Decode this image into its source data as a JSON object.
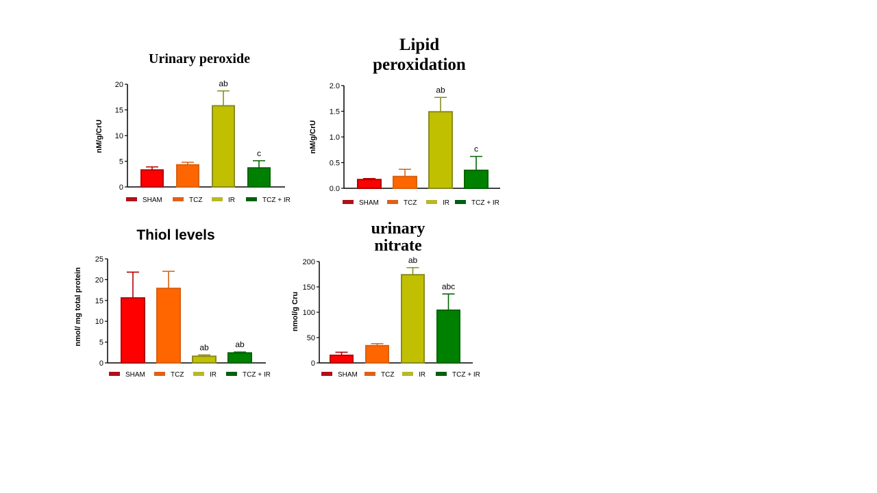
{
  "chart_data": [
    {
      "type": "bar",
      "title": "Urinary peroxide",
      "ylabel": "nM/g/CrU",
      "ylim": [
        0,
        20
      ],
      "yticks": [
        "0",
        "5",
        "10",
        "15",
        "20"
      ],
      "categories": [
        "SHAM",
        "TCZ",
        "IR",
        "TCZ + IR"
      ],
      "values": [
        3.3,
        4.3,
        15.8,
        3.7
      ],
      "errors": [
        0.6,
        0.5,
        2.9,
        1.4
      ],
      "annotations": [
        "",
        "",
        "ab",
        "c"
      ]
    },
    {
      "type": "bar",
      "title": "Lipid peroxidation",
      "ylabel": "nM/g/CrU",
      "ylim": [
        0,
        2.0
      ],
      "yticks": [
        "0.0",
        "0.5",
        "1.0",
        "1.5",
        "2.0"
      ],
      "categories": [
        "SHAM",
        "TCZ",
        "IR",
        "TCZ + IR"
      ],
      "values": [
        0.17,
        0.23,
        1.49,
        0.35
      ],
      "errors": [
        0.02,
        0.14,
        0.28,
        0.27
      ],
      "annotations": [
        "",
        "",
        "ab",
        "c"
      ]
    },
    {
      "type": "bar",
      "title": "Thiol levels",
      "ylabel": "nmol/ mg total protein",
      "ylim": [
        0,
        25
      ],
      "yticks": [
        "0",
        "5",
        "10",
        "15",
        "20",
        "25"
      ],
      "categories": [
        "SHAM",
        "TCZ",
        "IR",
        "TCZ + IR"
      ],
      "values": [
        15.6,
        17.9,
        1.6,
        2.4
      ],
      "errors": [
        6.2,
        4.1,
        0.3,
        0.2
      ],
      "annotations": [
        "",
        "",
        "ab",
        "ab"
      ]
    },
    {
      "type": "bar",
      "title": "urinary nitrate",
      "ylabel": "nmol/g Cru",
      "ylim": [
        0,
        200
      ],
      "yticks": [
        "0",
        "50",
        "100",
        "150",
        "200"
      ],
      "categories": [
        "SHAM",
        "TCZ",
        "IR",
        "TCZ + IR"
      ],
      "values": [
        15,
        34,
        174,
        104
      ],
      "errors": [
        6,
        4,
        14,
        32
      ],
      "annotations": [
        "",
        "",
        "ab",
        "abc"
      ]
    }
  ],
  "legend": {
    "placement": "bottom",
    "items": [
      "SHAM",
      "TCZ",
      "IR",
      "TCZ + IR"
    ]
  },
  "colors": {
    "fill": [
      "#ff0000",
      "#ff6600",
      "#c0c000",
      "#008000"
    ],
    "edge": [
      "#b00000",
      "#d86010",
      "#8a8a20",
      "#006400"
    ],
    "legend": [
      "#b01018",
      "#e06018",
      "#b8b828",
      "#006010"
    ]
  }
}
